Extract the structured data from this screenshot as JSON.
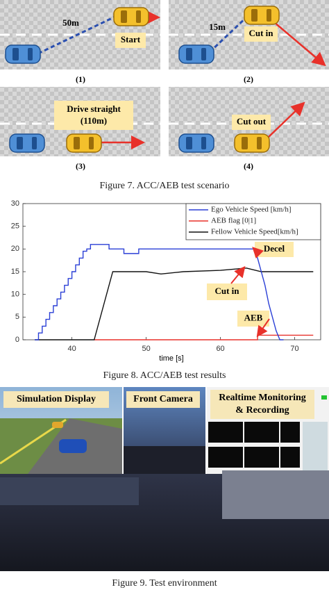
{
  "figure7": {
    "panels": [
      {
        "label": "(1)",
        "distance": "50m",
        "box": "Start"
      },
      {
        "label": "(2)",
        "distance": "15m",
        "box": "Cut in"
      },
      {
        "label": "(3)",
        "box_lines": [
          "Drive straight",
          "(110m)"
        ]
      },
      {
        "label": "(4)",
        "box": "Cut out"
      }
    ],
    "caption": "Figure 7. ACC/AEB test scenario"
  },
  "chart_data": {
    "type": "line",
    "xlabel": "time [s]",
    "xlim": [
      33.4,
      73.5
    ],
    "xticks": [
      40,
      50,
      60,
      70
    ],
    "ylim": [
      0,
      30
    ],
    "yticks": [
      0,
      5,
      10,
      15,
      20,
      25,
      30
    ],
    "legend": "upper right",
    "grid": false,
    "series": [
      {
        "name": "Ego Vehicle Speed [km/h]",
        "color": "#2a3fd6",
        "x": [
          35,
          35.5,
          35.5,
          36,
          36,
          36.5,
          36.5,
          37,
          37,
          37.5,
          37.5,
          38,
          38,
          38.5,
          38.5,
          39,
          39,
          39.5,
          39.5,
          40,
          40,
          40.5,
          40.5,
          41,
          41,
          41.5,
          41.5,
          42,
          42,
          42.5,
          42.5,
          45,
          45,
          47,
          47,
          49,
          49,
          64.5,
          65,
          65.5,
          66,
          66.5,
          67,
          67.5,
          68,
          68.5
        ],
        "values": [
          0,
          0,
          1.5,
          1.5,
          3,
          3,
          4.5,
          4.5,
          6,
          6,
          7.5,
          7.5,
          9,
          9,
          10.5,
          10.5,
          12,
          12,
          13.5,
          13.5,
          15,
          15,
          16.5,
          16.5,
          18,
          18,
          19.5,
          19.5,
          20,
          20,
          21,
          21,
          20,
          20,
          19,
          19,
          20,
          20,
          18,
          15,
          12,
          8,
          5,
          2,
          0,
          0
        ]
      },
      {
        "name": "AEB flag [0|1]",
        "color": "#e8312a",
        "x": [
          43,
          65,
          65,
          72.5
        ],
        "values": [
          0,
          0,
          1,
          1
        ]
      },
      {
        "name": "Fellow Vehicle Speed[km/h]",
        "color": "#111111",
        "x": [
          35,
          43,
          45.5,
          50,
          52,
          55,
          60,
          63.5,
          65.5,
          72.5
        ],
        "values": [
          0,
          0,
          15,
          15,
          14.5,
          15,
          15.3,
          15.8,
          15,
          15
        ]
      }
    ],
    "annotations": [
      "Decel",
      "Cut in",
      "AEB"
    ]
  },
  "figure8": {
    "caption": "Figure 8. ACC/AEB test results"
  },
  "figure9": {
    "labels": [
      "Simulation Display",
      "Front Camera"
    ],
    "monitor_lines": [
      "Realtime Monitoring",
      "& Recording"
    ],
    "caption": "Figure 9. Test environment"
  }
}
